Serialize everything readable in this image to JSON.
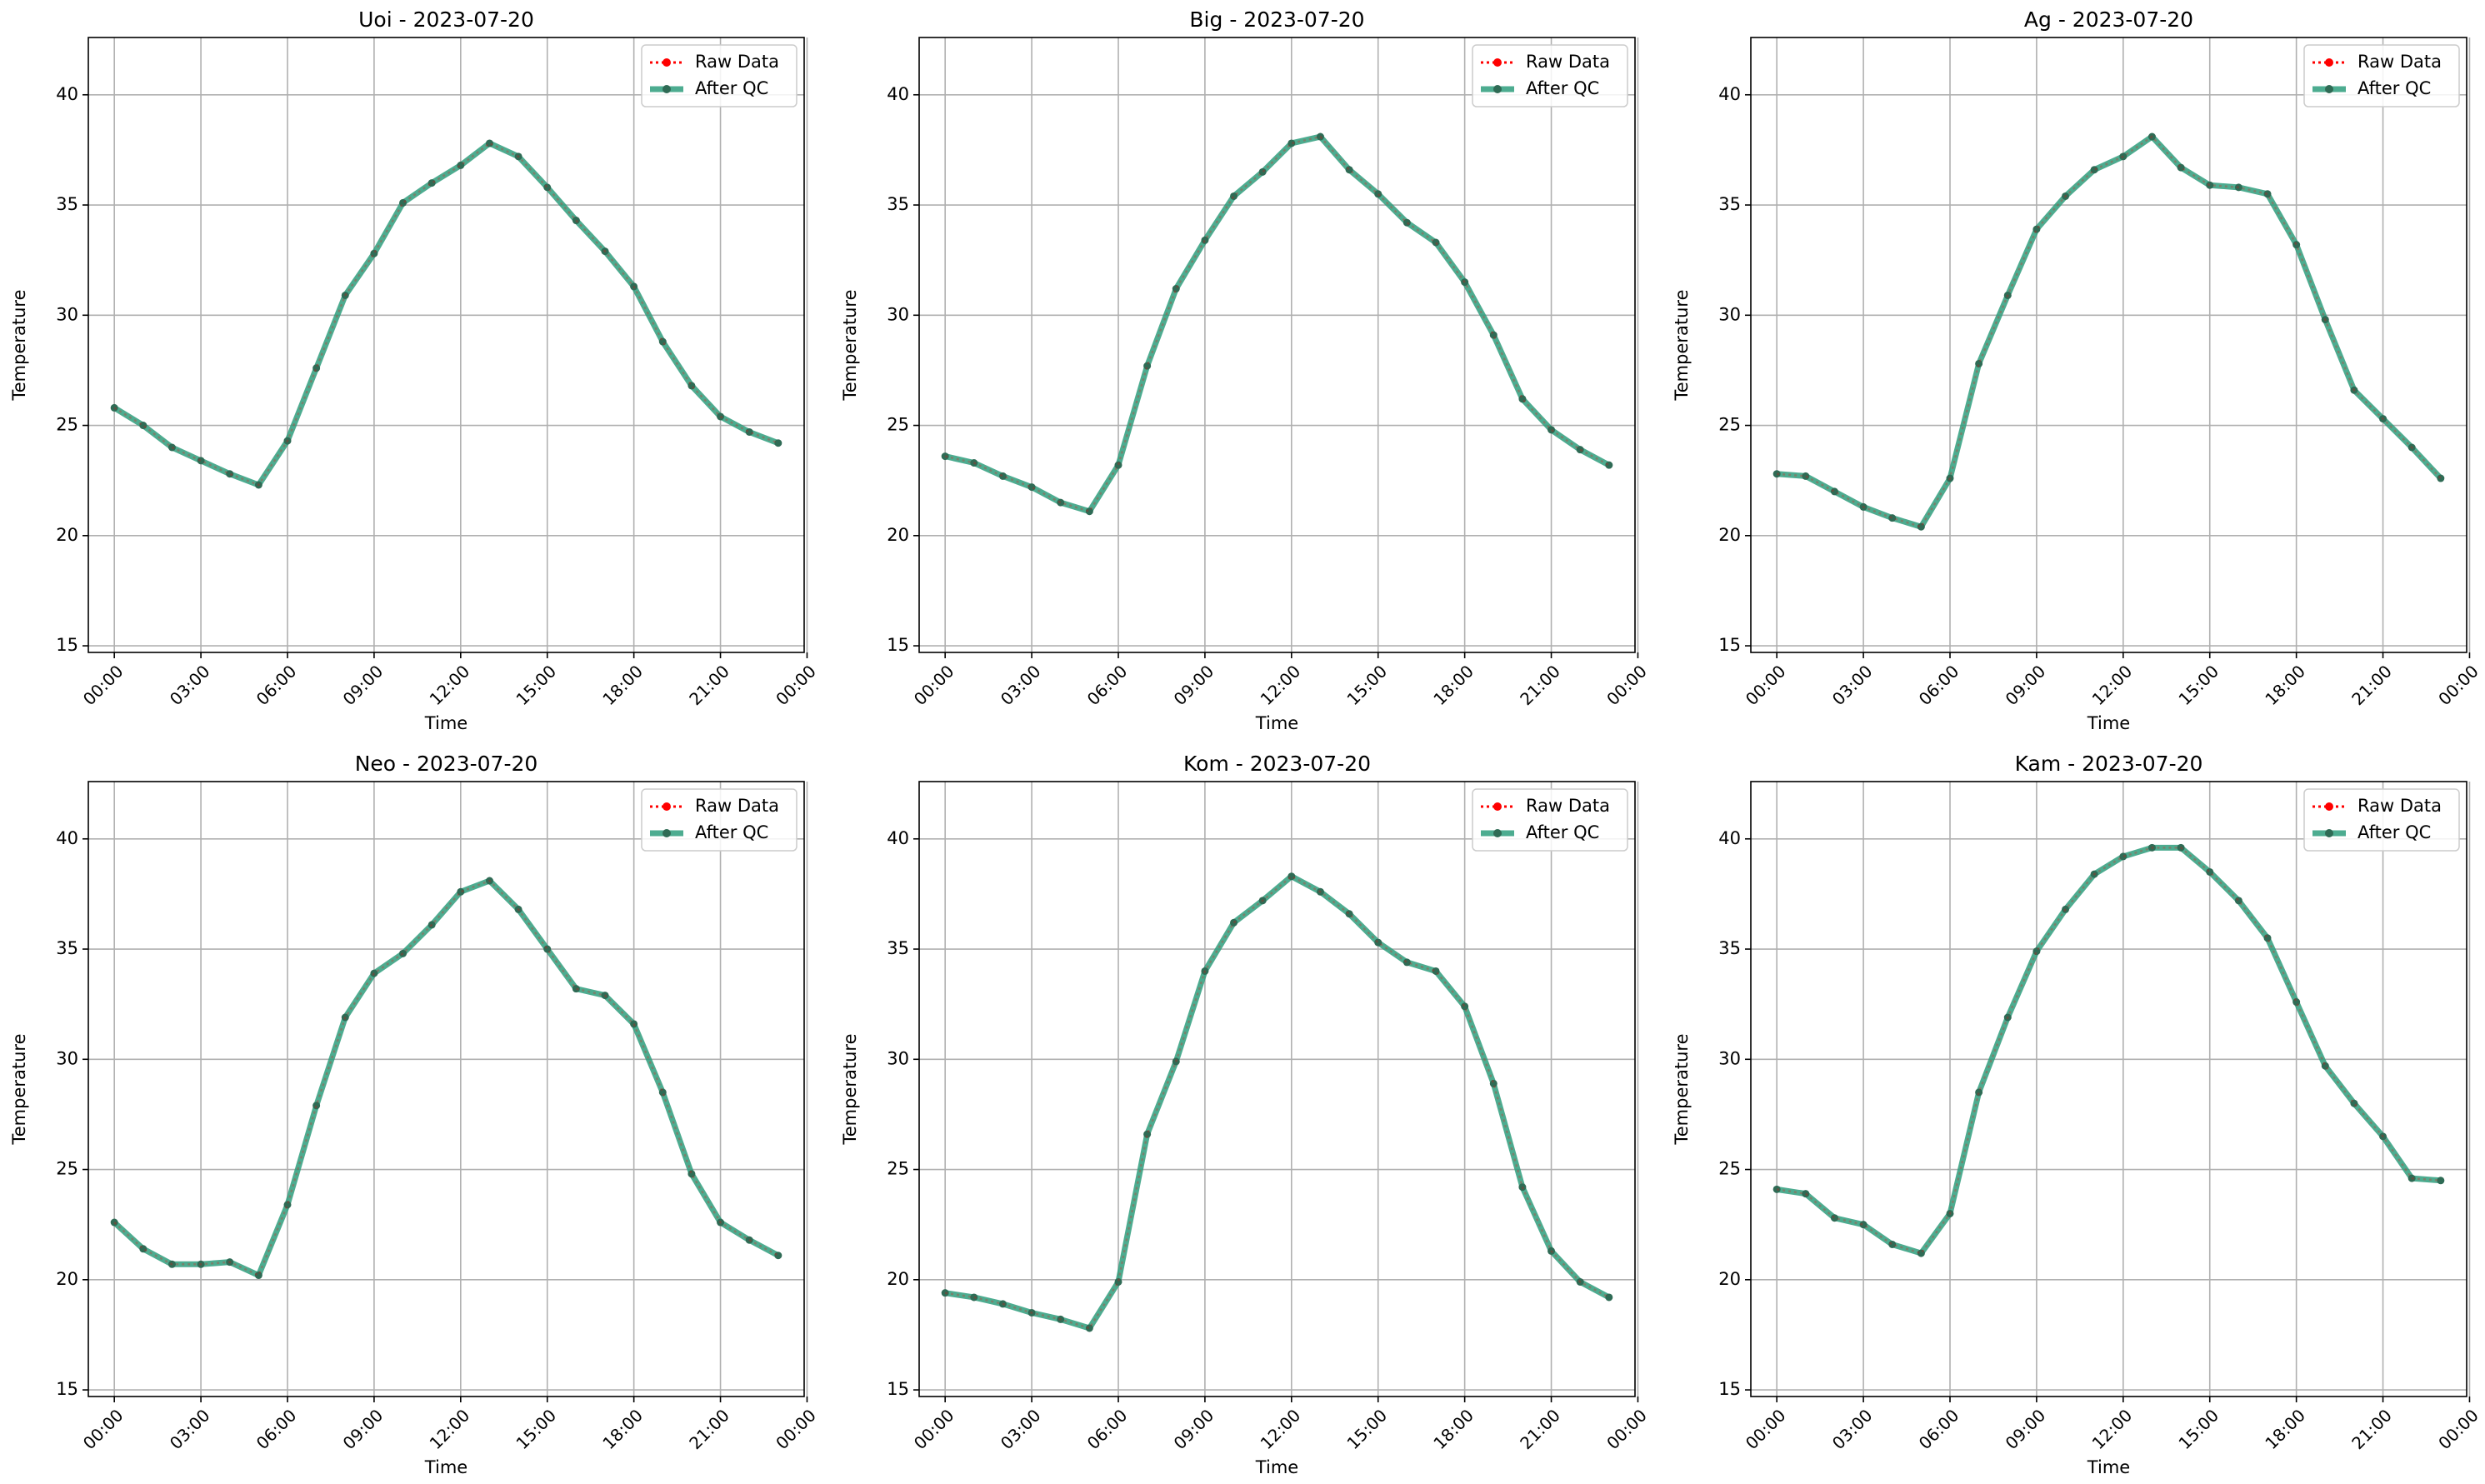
{
  "legend_labels": {
    "raw": "Raw Data",
    "qc": "After QC"
  },
  "colors": {
    "raw": "#ff0000",
    "qc": "#2e9e7c",
    "qc_marker": "#2f6b55",
    "grid": "#b0b0b0",
    "axis": "#000000"
  },
  "chart_data": [
    {
      "type": "line",
      "title": "Uoi - 2023-07-20",
      "xlabel": "Time",
      "ylabel": "Temperature",
      "xlim": [
        -0.9,
        23.9
      ],
      "ylim": [
        14.7,
        42.6
      ],
      "xticks": [
        "00:00",
        "03:00",
        "06:00",
        "09:00",
        "12:00",
        "15:00",
        "18:00",
        "21:00",
        "00:00"
      ],
      "yticks": [
        15,
        20,
        25,
        30,
        35,
        40
      ],
      "grid": true,
      "legend": "top-right",
      "x": [
        "00:00",
        "01:00",
        "02:00",
        "03:00",
        "04:00",
        "05:00",
        "06:00",
        "07:00",
        "08:00",
        "09:00",
        "10:00",
        "11:00",
        "12:00",
        "13:00",
        "14:00",
        "15:00",
        "16:00",
        "17:00",
        "18:00",
        "19:00",
        "20:00",
        "21:00",
        "22:00",
        "23:00"
      ],
      "series": [
        {
          "name": "Raw Data",
          "values": [
            25.8,
            25.0,
            24.0,
            23.4,
            22.8,
            22.3,
            24.3,
            27.6,
            30.9,
            32.8,
            35.1,
            36.0,
            36.8,
            37.8,
            37.2,
            35.8,
            34.3,
            32.9,
            31.3,
            28.8,
            26.8,
            25.4,
            24.7,
            24.2
          ]
        },
        {
          "name": "After QC",
          "values": [
            25.8,
            25.0,
            24.0,
            23.4,
            22.8,
            22.3,
            24.3,
            27.6,
            30.9,
            32.8,
            35.1,
            36.0,
            36.8,
            37.8,
            37.2,
            35.8,
            34.3,
            32.9,
            31.3,
            28.8,
            26.8,
            25.4,
            24.7,
            24.2
          ]
        }
      ]
    },
    {
      "type": "line",
      "title": "Big - 2023-07-20",
      "xlabel": "Time",
      "ylabel": "Temperature",
      "xlim": [
        -0.9,
        23.9
      ],
      "ylim": [
        14.7,
        42.6
      ],
      "xticks": [
        "00:00",
        "03:00",
        "06:00",
        "09:00",
        "12:00",
        "15:00",
        "18:00",
        "21:00",
        "00:00"
      ],
      "yticks": [
        15,
        20,
        25,
        30,
        35,
        40
      ],
      "grid": true,
      "legend": "top-right",
      "x": [
        "00:00",
        "01:00",
        "02:00",
        "03:00",
        "04:00",
        "05:00",
        "06:00",
        "07:00",
        "08:00",
        "09:00",
        "10:00",
        "11:00",
        "12:00",
        "13:00",
        "14:00",
        "15:00",
        "16:00",
        "17:00",
        "18:00",
        "19:00",
        "20:00",
        "21:00",
        "22:00",
        "23:00"
      ],
      "series": [
        {
          "name": "Raw Data",
          "values": [
            23.6,
            23.3,
            22.7,
            22.2,
            21.5,
            21.1,
            23.2,
            27.7,
            31.2,
            33.4,
            35.4,
            36.5,
            37.8,
            38.1,
            36.6,
            35.5,
            34.2,
            33.3,
            31.5,
            29.1,
            26.2,
            24.8,
            23.9,
            23.2
          ]
        },
        {
          "name": "After QC",
          "values": [
            23.6,
            23.3,
            22.7,
            22.2,
            21.5,
            21.1,
            23.2,
            27.7,
            31.2,
            33.4,
            35.4,
            36.5,
            37.8,
            38.1,
            36.6,
            35.5,
            34.2,
            33.3,
            31.5,
            29.1,
            26.2,
            24.8,
            23.9,
            23.2
          ]
        }
      ]
    },
    {
      "type": "line",
      "title": "Ag - 2023-07-20",
      "xlabel": "Time",
      "ylabel": "Temperature",
      "xlim": [
        -0.9,
        23.9
      ],
      "ylim": [
        14.7,
        42.6
      ],
      "xticks": [
        "00:00",
        "03:00",
        "06:00",
        "09:00",
        "12:00",
        "15:00",
        "18:00",
        "21:00",
        "00:00"
      ],
      "yticks": [
        15,
        20,
        25,
        30,
        35,
        40
      ],
      "grid": true,
      "legend": "top-right",
      "x": [
        "00:00",
        "01:00",
        "02:00",
        "03:00",
        "04:00",
        "05:00",
        "06:00",
        "07:00",
        "08:00",
        "09:00",
        "10:00",
        "11:00",
        "12:00",
        "13:00",
        "14:00",
        "15:00",
        "16:00",
        "17:00",
        "18:00",
        "19:00",
        "20:00",
        "21:00",
        "22:00",
        "23:00"
      ],
      "series": [
        {
          "name": "Raw Data",
          "values": [
            22.8,
            22.7,
            22.0,
            21.3,
            20.8,
            20.4,
            22.6,
            27.8,
            30.9,
            33.9,
            35.4,
            36.6,
            37.2,
            38.1,
            36.7,
            35.9,
            35.8,
            35.5,
            33.2,
            29.8,
            26.6,
            25.3,
            24.0,
            22.6
          ]
        },
        {
          "name": "After QC",
          "values": [
            22.8,
            22.7,
            22.0,
            21.3,
            20.8,
            20.4,
            22.6,
            27.8,
            30.9,
            33.9,
            35.4,
            36.6,
            37.2,
            38.1,
            36.7,
            35.9,
            35.8,
            35.5,
            33.2,
            29.8,
            26.6,
            25.3,
            24.0,
            22.6
          ]
        }
      ]
    },
    {
      "type": "line",
      "title": "Neo - 2023-07-20",
      "xlabel": "Time",
      "ylabel": "Temperature",
      "xlim": [
        -0.9,
        23.9
      ],
      "ylim": [
        14.7,
        42.6
      ],
      "xticks": [
        "00:00",
        "03:00",
        "06:00",
        "09:00",
        "12:00",
        "15:00",
        "18:00",
        "21:00",
        "00:00"
      ],
      "yticks": [
        15,
        20,
        25,
        30,
        35,
        40
      ],
      "grid": true,
      "legend": "top-right",
      "x": [
        "00:00",
        "01:00",
        "02:00",
        "03:00",
        "04:00",
        "05:00",
        "06:00",
        "07:00",
        "08:00",
        "09:00",
        "10:00",
        "11:00",
        "12:00",
        "13:00",
        "14:00",
        "15:00",
        "16:00",
        "17:00",
        "18:00",
        "19:00",
        "20:00",
        "21:00",
        "22:00",
        "23:00"
      ],
      "series": [
        {
          "name": "Raw Data",
          "values": [
            22.6,
            21.4,
            20.7,
            20.7,
            20.8,
            20.2,
            23.4,
            27.9,
            31.9,
            33.9,
            34.8,
            36.1,
            37.6,
            38.1,
            36.8,
            35.0,
            33.2,
            32.9,
            31.6,
            28.5,
            24.8,
            22.6,
            21.8,
            21.1
          ]
        },
        {
          "name": "After QC",
          "values": [
            22.6,
            21.4,
            20.7,
            20.7,
            20.8,
            20.2,
            23.4,
            27.9,
            31.9,
            33.9,
            34.8,
            36.1,
            37.6,
            38.1,
            36.8,
            35.0,
            33.2,
            32.9,
            31.6,
            28.5,
            24.8,
            22.6,
            21.8,
            21.1
          ]
        }
      ]
    },
    {
      "type": "line",
      "title": "Kom - 2023-07-20",
      "xlabel": "Time",
      "ylabel": "Temperature",
      "xlim": [
        -0.9,
        23.9
      ],
      "ylim": [
        14.7,
        42.6
      ],
      "xticks": [
        "00:00",
        "03:00",
        "06:00",
        "09:00",
        "12:00",
        "15:00",
        "18:00",
        "21:00",
        "00:00"
      ],
      "yticks": [
        15,
        20,
        25,
        30,
        35,
        40
      ],
      "grid": true,
      "legend": "top-right",
      "x": [
        "00:00",
        "01:00",
        "02:00",
        "03:00",
        "04:00",
        "05:00",
        "06:00",
        "07:00",
        "08:00",
        "09:00",
        "10:00",
        "11:00",
        "12:00",
        "13:00",
        "14:00",
        "15:00",
        "16:00",
        "17:00",
        "18:00",
        "19:00",
        "20:00",
        "21:00",
        "22:00",
        "23:00"
      ],
      "series": [
        {
          "name": "Raw Data",
          "values": [
            19.4,
            19.2,
            18.9,
            18.5,
            18.2,
            17.8,
            19.9,
            26.6,
            29.9,
            34.0,
            36.2,
            37.2,
            38.3,
            37.6,
            36.6,
            35.3,
            34.4,
            34.0,
            32.4,
            28.9,
            24.2,
            21.3,
            19.9,
            19.2
          ]
        },
        {
          "name": "After QC",
          "values": [
            19.4,
            19.2,
            18.9,
            18.5,
            18.2,
            17.8,
            19.9,
            26.6,
            29.9,
            34.0,
            36.2,
            37.2,
            38.3,
            37.6,
            36.6,
            35.3,
            34.4,
            34.0,
            32.4,
            28.9,
            24.2,
            21.3,
            19.9,
            19.2
          ]
        }
      ]
    },
    {
      "type": "line",
      "title": "Kam - 2023-07-20",
      "xlabel": "Time",
      "ylabel": "Temperature",
      "xlim": [
        -0.9,
        23.9
      ],
      "ylim": [
        14.7,
        42.6
      ],
      "xticks": [
        "00:00",
        "03:00",
        "06:00",
        "09:00",
        "12:00",
        "15:00",
        "18:00",
        "21:00",
        "00:00"
      ],
      "yticks": [
        15,
        20,
        25,
        30,
        35,
        40
      ],
      "grid": true,
      "legend": "top-right",
      "x": [
        "00:00",
        "01:00",
        "02:00",
        "03:00",
        "04:00",
        "05:00",
        "06:00",
        "07:00",
        "08:00",
        "09:00",
        "10:00",
        "11:00",
        "12:00",
        "13:00",
        "14:00",
        "15:00",
        "16:00",
        "17:00",
        "18:00",
        "19:00",
        "20:00",
        "21:00",
        "22:00",
        "23:00"
      ],
      "series": [
        {
          "name": "Raw Data",
          "values": [
            24.1,
            23.9,
            22.8,
            22.5,
            21.6,
            21.2,
            23.0,
            28.5,
            31.9,
            34.9,
            36.8,
            38.4,
            39.2,
            39.6,
            39.6,
            38.5,
            37.2,
            35.5,
            32.6,
            29.7,
            28.0,
            26.5,
            24.6,
            24.5
          ]
        },
        {
          "name": "After QC",
          "values": [
            24.1,
            23.9,
            22.8,
            22.5,
            21.6,
            21.2,
            23.0,
            28.5,
            31.9,
            34.9,
            36.8,
            38.4,
            39.2,
            39.6,
            39.6,
            38.5,
            37.2,
            35.5,
            32.6,
            29.7,
            28.0,
            26.5,
            24.6,
            24.5
          ]
        }
      ]
    }
  ]
}
